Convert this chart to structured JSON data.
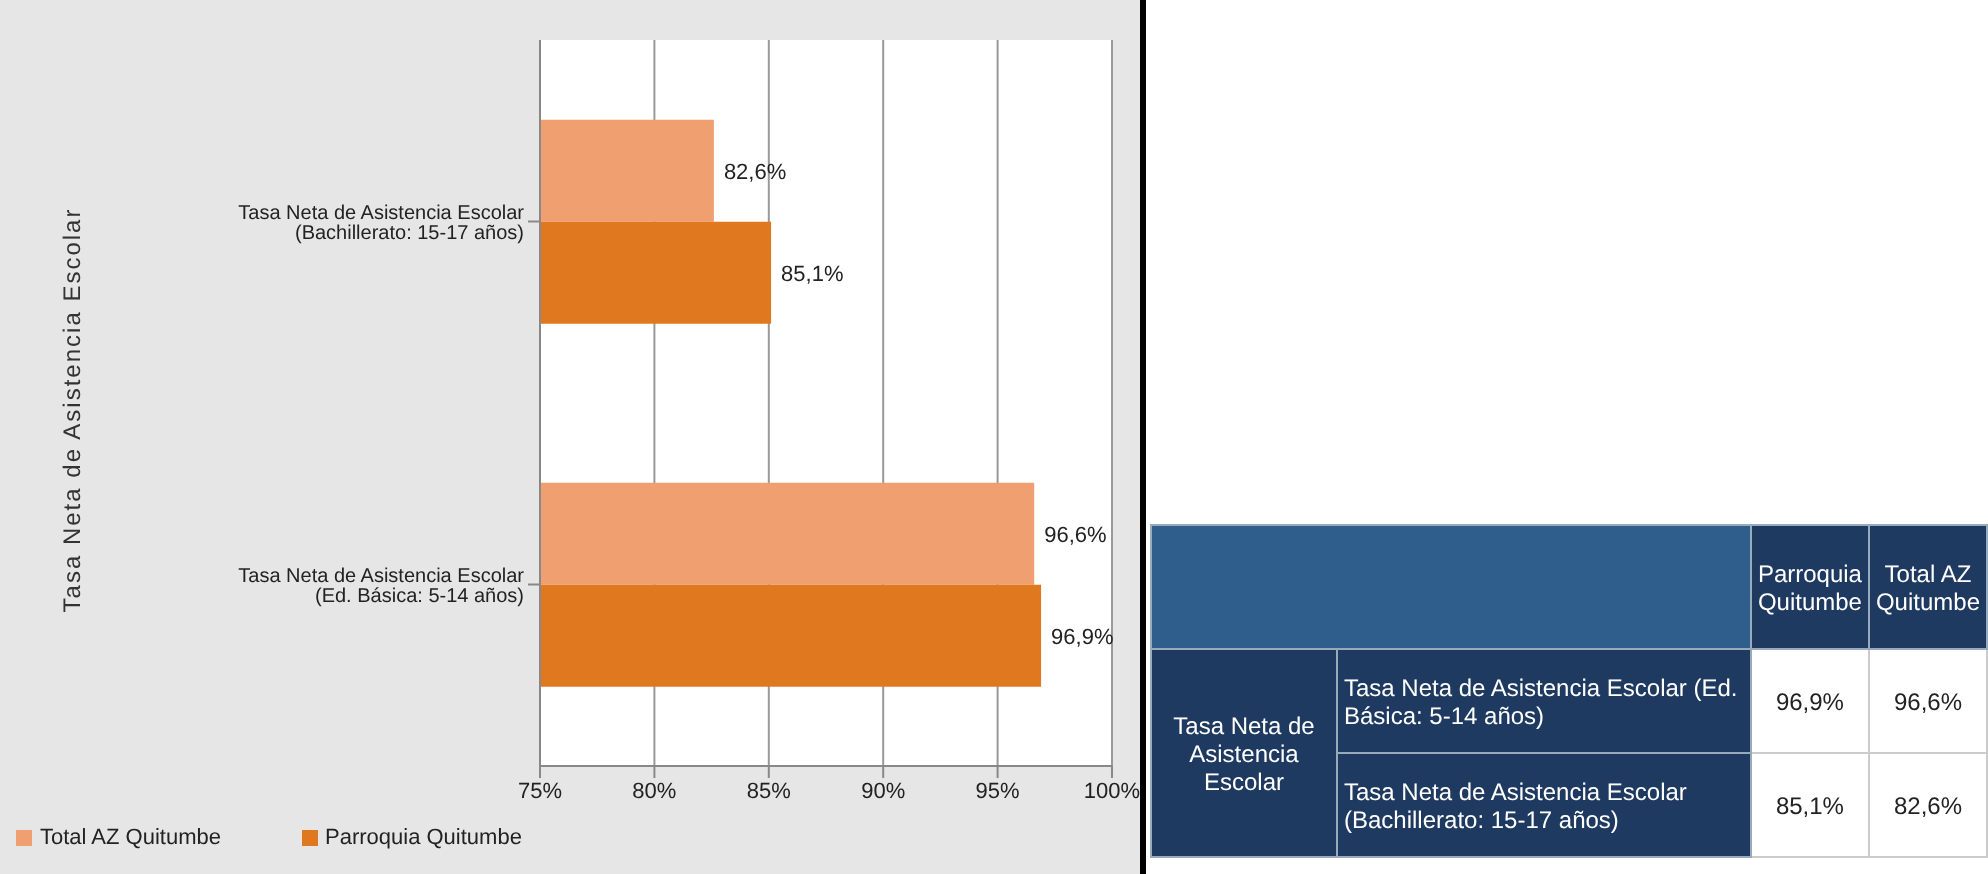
{
  "chart_data": [
    {
      "type": "bar",
      "orientation": "horizontal",
      "ylabel": "Tasa Neta de Asistencia Escolar",
      "categories": [
        "Tasa Neta de Asistencia Escolar (Bachillerato: 15-17 años)",
        "Tasa Neta de Asistencia Escolar (Ed. Básica: 5-14 años)"
      ],
      "series": [
        {
          "name": "Total AZ Quitumbe",
          "color": "#f0a070",
          "values": [
            82.6,
            96.6
          ],
          "value_labels": [
            "82,6%",
            "96,6%"
          ]
        },
        {
          "name": "Parroquia Quitumbe",
          "color": "#e07820",
          "values": [
            85.1,
            96.9
          ],
          "value_labels": [
            "85,1%",
            "96,9%"
          ]
        }
      ],
      "xlim": [
        75,
        100
      ],
      "xticks": [
        {
          "value": 75,
          "label": "75%"
        },
        {
          "value": 80,
          "label": "80%"
        },
        {
          "value": 85,
          "label": "85%"
        },
        {
          "value": 90,
          "label": "90%"
        },
        {
          "value": 95,
          "label": "95%"
        },
        {
          "value": 100,
          "label": "100%"
        }
      ],
      "grid": "x",
      "legend": "bottom left"
    },
    {
      "type": "other",
      "annotations": [
        "Parroquia Quitumbe",
        "Total AZ Quitumbe",
        "Tasa Neta de Asistencia Escolar",
        "Tasa Neta de Asistencia Escolar (Ed. Básica: 5-14 años)",
        "96,9%",
        "96,6%",
        "Tasa Neta de Asistencia Escolar (Bachillerato: 15-17 años)",
        "85,1%",
        "82,6%"
      ]
    }
  ]
}
